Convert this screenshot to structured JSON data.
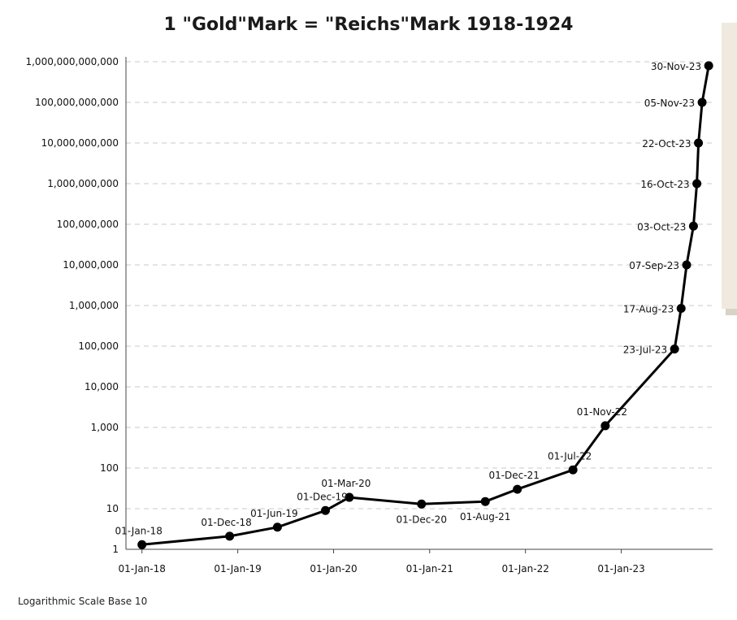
{
  "chart_data": {
    "type": "line",
    "title": "1 \"Gold\"Mark = \"Reichs\"Mark 1918-1924",
    "xlabel": "",
    "ylabel": "",
    "y_scale": "log10",
    "ylim": [
      1,
      1000000000000
    ],
    "y_tick_labels": [
      "1",
      "10",
      "100",
      "1,000",
      "10,000",
      "100,000",
      "1,000,000",
      "10,000,000",
      "100,000,000",
      "1,000,000,000",
      "10,000,000,000",
      "100,000,000,000",
      "1,000,000,000,000"
    ],
    "x_tick_labels": [
      "01-Jan-18",
      "01-Jan-19",
      "01-Jan-20",
      "01-Jan-21",
      "01-Jan-22",
      "01-Jan-23"
    ],
    "x_tick_dates": [
      "1918-01-01",
      "1919-01-01",
      "1920-01-01",
      "1921-01-01",
      "1922-01-01",
      "1923-01-01"
    ],
    "xlim": [
      "1917-11-01",
      "1923-12-15"
    ],
    "grid": true,
    "series": [
      {
        "points": [
          {
            "x": "1918-01-01",
            "y": 1.3,
            "label": "01-Jan-18"
          },
          {
            "x": "1918-12-01",
            "y": 2.1,
            "label": "01-Dec-18"
          },
          {
            "x": "1919-06-01",
            "y": 3.5,
            "label": "01-Jun-19"
          },
          {
            "x": "1919-12-01",
            "y": 9,
            "label": "01-Dec-19"
          },
          {
            "x": "1920-03-01",
            "y": 19,
            "label": "01-Mar-20"
          },
          {
            "x": "1920-12-01",
            "y": 13,
            "label": "01-Dec-20"
          },
          {
            "x": "1921-08-01",
            "y": 15,
            "label": "01-Aug-21"
          },
          {
            "x": "1921-12-01",
            "y": 30,
            "label": "01-Dec-21"
          },
          {
            "x": "1922-07-01",
            "y": 90,
            "label": "01-Jul-22"
          },
          {
            "x": "1922-11-01",
            "y": 1100,
            "label": "01-Nov-22"
          },
          {
            "x": "1923-07-23",
            "y": 85000,
            "label": "23-Jul-23"
          },
          {
            "x": "1923-08-17",
            "y": 850000,
            "label": "17-Aug-23"
          },
          {
            "x": "1923-09-07",
            "y": 10000000,
            "label": "07-Sep-23"
          },
          {
            "x": "1923-10-03",
            "y": 90000000,
            "label": "03-Oct-23"
          },
          {
            "x": "1923-10-16",
            "y": 1000000000,
            "label": "16-Oct-23"
          },
          {
            "x": "1923-10-22",
            "y": 10000000000,
            "label": "22-Oct-23"
          },
          {
            "x": "1923-11-05",
            "y": 100000000000,
            "label": "05-Nov-23"
          },
          {
            "x": "1923-11-30",
            "y": 800000000000,
            "label": "30-Nov-23"
          }
        ]
      }
    ]
  },
  "note": "Logarithmic Scale Base 10"
}
